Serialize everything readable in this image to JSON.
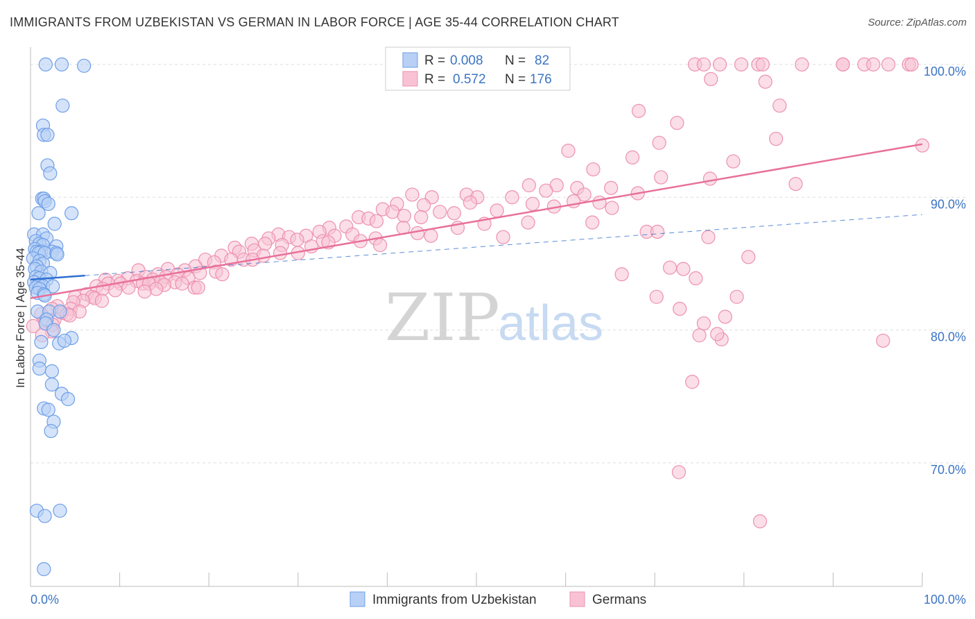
{
  "title": "IMMIGRANTS FROM UZBEKISTAN VS GERMAN IN LABOR FORCE | AGE 35-44 CORRELATION CHART",
  "source": "Source: ZipAtlas.com",
  "watermark": {
    "zip": "ZIP",
    "atlas": "atlas"
  },
  "colors": {
    "blue_fill": "#b8d0f5",
    "blue_stroke": "#6d9ee8",
    "blue_line": "#2f6fd0",
    "pink_fill": "#f8c2d4",
    "pink_stroke": "#ec90b0",
    "pink_line": "#e8709a",
    "grid": "#dddddd",
    "label": "#3b74c4"
  },
  "legend": {
    "rows": [
      {
        "r_label": "R =",
        "r_value": "0.008",
        "n_label": "N =",
        "n_value": "82"
      },
      {
        "r_label": "R =",
        "r_value": "0.572",
        "n_label": "N =",
        "n_value": "176"
      }
    ]
  },
  "chart_data": {
    "type": "scatter",
    "title": "IMMIGRANTS FROM UZBEKISTAN VS GERMAN IN LABOR FORCE | AGE 35-44 CORRELATION CHART",
    "xlabel": "",
    "ylabel": "In Labor Force | Age 35-44",
    "xlim": [
      0,
      100
    ],
    "ylim": [
      60.7,
      101.3
    ],
    "x_tick_labels": [
      "0.0%",
      "100.0%"
    ],
    "y_ticks": [
      70,
      80,
      90,
      100
    ],
    "y_tick_labels": [
      "70.0%",
      "80.0%",
      "90.0%",
      "100.0%"
    ],
    "grid": true,
    "legend_placement": "top-center",
    "series": [
      {
        "name": "Immigrants from Uzbekistan",
        "r": 0.008,
        "n": 82,
        "trend": {
          "x0": 0,
          "y0": 83.8,
          "x1": 6.1,
          "y1": 84.1,
          "dashed_to": 100,
          "dashed_y1": 88.7
        },
        "points": [
          [
            1.7,
            100.0
          ],
          [
            3.5,
            100.0
          ],
          [
            6.0,
            99.9
          ],
          [
            3.6,
            96.9
          ],
          [
            1.4,
            95.4
          ],
          [
            1.5,
            94.7
          ],
          [
            1.9,
            94.7
          ],
          [
            1.9,
            92.4
          ],
          [
            2.2,
            91.8
          ],
          [
            1.3,
            89.9
          ],
          [
            1.5,
            89.9
          ],
          [
            1.6,
            89.7
          ],
          [
            2.0,
            89.5
          ],
          [
            0.9,
            88.8
          ],
          [
            4.6,
            88.8
          ],
          [
            2.7,
            88.0
          ],
          [
            0.4,
            87.2
          ],
          [
            1.4,
            87.2
          ],
          [
            1.8,
            86.9
          ],
          [
            0.6,
            86.7
          ],
          [
            1.0,
            86.5
          ],
          [
            1.4,
            86.4
          ],
          [
            2.9,
            86.3
          ],
          [
            0.5,
            86.1
          ],
          [
            0.7,
            85.9
          ],
          [
            1.2,
            85.9
          ],
          [
            2.4,
            85.9
          ],
          [
            0.9,
            85.8
          ],
          [
            1.6,
            85.8
          ],
          [
            2.9,
            85.8
          ],
          [
            3.0,
            85.7
          ],
          [
            0.3,
            85.4
          ],
          [
            1.0,
            85.2
          ],
          [
            1.4,
            85.0
          ],
          [
            0.7,
            84.8
          ],
          [
            0.5,
            84.6
          ],
          [
            1.2,
            84.4
          ],
          [
            2.2,
            84.3
          ],
          [
            0.6,
            84.0
          ],
          [
            1.0,
            83.9
          ],
          [
            1.8,
            83.8
          ],
          [
            0.4,
            83.6
          ],
          [
            0.9,
            83.4
          ],
          [
            1.4,
            83.3
          ],
          [
            2.5,
            83.3
          ],
          [
            0.6,
            83.2
          ],
          [
            1.0,
            83.1
          ],
          [
            0.8,
            82.8
          ],
          [
            1.5,
            82.7
          ],
          [
            1.6,
            82.6
          ],
          [
            0.8,
            81.4
          ],
          [
            2.1,
            81.4
          ],
          [
            3.3,
            81.4
          ],
          [
            1.8,
            80.8
          ],
          [
            1.7,
            80.5
          ],
          [
            2.6,
            80.0
          ],
          [
            4.6,
            79.4
          ],
          [
            3.2,
            79.0
          ],
          [
            3.8,
            79.2
          ],
          [
            1.2,
            79.1
          ],
          [
            1.0,
            77.7
          ],
          [
            1.0,
            77.1
          ],
          [
            2.4,
            76.9
          ],
          [
            2.4,
            75.9
          ],
          [
            3.5,
            75.2
          ],
          [
            4.2,
            74.8
          ],
          [
            1.5,
            74.1
          ],
          [
            2.0,
            74.0
          ],
          [
            2.6,
            73.1
          ],
          [
            2.3,
            72.4
          ],
          [
            0.7,
            66.4
          ],
          [
            3.3,
            66.4
          ],
          [
            1.6,
            66.0
          ],
          [
            1.5,
            62.0
          ]
        ]
      },
      {
        "name": "Germans",
        "r": 0.572,
        "n": 176,
        "trend": {
          "x0": 0,
          "y0": 82.4,
          "x1": 100,
          "y1": 94.0
        },
        "points": [
          [
            74.5,
            100
          ],
          [
            75.5,
            100
          ],
          [
            77.3,
            100
          ],
          [
            79.7,
            100
          ],
          [
            81.6,
            100
          ],
          [
            82.1,
            100
          ],
          [
            86.5,
            100
          ],
          [
            91.1,
            100
          ],
          [
            91.1,
            100
          ],
          [
            93.5,
            100
          ],
          [
            94.5,
            100
          ],
          [
            96.2,
            100
          ],
          [
            98.5,
            100
          ],
          [
            98.8,
            100
          ],
          [
            76.3,
            98.9
          ],
          [
            82.4,
            98.7
          ],
          [
            84.0,
            96.9
          ],
          [
            68.2,
            96.5
          ],
          [
            72.5,
            95.6
          ],
          [
            70.5,
            94.1
          ],
          [
            83.6,
            94.4
          ],
          [
            100,
            93.9
          ],
          [
            60.3,
            93.5
          ],
          [
            67.5,
            93.0
          ],
          [
            78.8,
            92.7
          ],
          [
            63.1,
            92.1
          ],
          [
            76.2,
            91.4
          ],
          [
            70.7,
            91.5
          ],
          [
            85.8,
            91.0
          ],
          [
            59.0,
            90.9
          ],
          [
            61.3,
            90.7
          ],
          [
            55.9,
            90.9
          ],
          [
            65.1,
            90.7
          ],
          [
            57.8,
            90.5
          ],
          [
            68.1,
            90.3
          ],
          [
            42.8,
            90.2
          ],
          [
            48.9,
            90.2
          ],
          [
            50.1,
            90.0
          ],
          [
            62.1,
            90.2
          ],
          [
            54.0,
            90.0
          ],
          [
            45.0,
            90.0
          ],
          [
            60.9,
            89.7
          ],
          [
            56.3,
            89.5
          ],
          [
            49.3,
            89.6
          ],
          [
            63.8,
            89.6
          ],
          [
            41.1,
            89.5
          ],
          [
            44.1,
            89.4
          ],
          [
            58.7,
            89.3
          ],
          [
            65.2,
            89.2
          ],
          [
            39.5,
            89.1
          ],
          [
            52.3,
            89.0
          ],
          [
            45.9,
            88.9
          ],
          [
            40.6,
            88.9
          ],
          [
            47.5,
            88.8
          ],
          [
            41.9,
            88.6
          ],
          [
            36.8,
            88.5
          ],
          [
            43.8,
            88.5
          ],
          [
            37.9,
            88.4
          ],
          [
            38.8,
            88.2
          ],
          [
            55.8,
            88.1
          ],
          [
            50.9,
            88.0
          ],
          [
            63.0,
            88.1
          ],
          [
            35.4,
            87.8
          ],
          [
            41.8,
            87.7
          ],
          [
            47.9,
            87.7
          ],
          [
            33.5,
            87.7
          ],
          [
            69.1,
            87.4
          ],
          [
            70.3,
            87.4
          ],
          [
            32.4,
            87.4
          ],
          [
            43.4,
            87.3
          ],
          [
            36.1,
            87.2
          ],
          [
            34.1,
            87.1
          ],
          [
            44.9,
            87.1
          ],
          [
            30.9,
            87.1
          ],
          [
            27.8,
            87.2
          ],
          [
            29.0,
            87.0
          ],
          [
            53.0,
            87.0
          ],
          [
            76.0,
            87.0
          ],
          [
            26.7,
            86.9
          ],
          [
            38.7,
            86.9
          ],
          [
            29.9,
            86.8
          ],
          [
            32.8,
            86.7
          ],
          [
            37.0,
            86.7
          ],
          [
            33.4,
            86.6
          ],
          [
            26.3,
            86.5
          ],
          [
            24.8,
            86.5
          ],
          [
            28.2,
            86.4
          ],
          [
            39.2,
            86.4
          ],
          [
            31.5,
            86.3
          ],
          [
            22.9,
            86.2
          ],
          [
            25.1,
            86.0
          ],
          [
            23.4,
            85.9
          ],
          [
            28.0,
            85.8
          ],
          [
            30.0,
            85.8
          ],
          [
            26.1,
            85.6
          ],
          [
            21.4,
            85.6
          ],
          [
            80.5,
            85.5
          ],
          [
            23.9,
            85.3
          ],
          [
            19.6,
            85.3
          ],
          [
            22.5,
            85.3
          ],
          [
            24.9,
            85.3
          ],
          [
            20.6,
            85.1
          ],
          [
            18.5,
            84.8
          ],
          [
            15.4,
            84.6
          ],
          [
            71.7,
            84.7
          ],
          [
            73.2,
            84.6
          ],
          [
            12.1,
            84.5
          ],
          [
            17.3,
            84.5
          ],
          [
            20.8,
            84.4
          ],
          [
            19.0,
            84.3
          ],
          [
            14.3,
            84.2
          ],
          [
            16.5,
            84.2
          ],
          [
            21.5,
            84.2
          ],
          [
            66.3,
            84.2
          ],
          [
            12.9,
            84.0
          ],
          [
            15.2,
            84.0
          ],
          [
            17.7,
            83.9
          ],
          [
            10.9,
            83.9
          ],
          [
            13.7,
            83.8
          ],
          [
            74.6,
            83.9
          ],
          [
            8.4,
            83.8
          ],
          [
            9.8,
            83.7
          ],
          [
            11.9,
            83.7
          ],
          [
            14.6,
            83.6
          ],
          [
            16.2,
            83.6
          ],
          [
            8.7,
            83.5
          ],
          [
            10.1,
            83.5
          ],
          [
            12.6,
            83.5
          ],
          [
            13.3,
            83.5
          ],
          [
            15.0,
            83.4
          ],
          [
            17.0,
            83.5
          ],
          [
            7.4,
            83.3
          ],
          [
            11.0,
            83.2
          ],
          [
            18.4,
            83.2
          ],
          [
            18.8,
            83.2
          ],
          [
            14.1,
            83.1
          ],
          [
            8.1,
            83.1
          ],
          [
            9.5,
            83.0
          ],
          [
            12.8,
            82.9
          ],
          [
            6.3,
            82.7
          ],
          [
            5.0,
            82.5
          ],
          [
            6.9,
            82.5
          ],
          [
            7.2,
            82.4
          ],
          [
            5.9,
            82.2
          ],
          [
            8.0,
            82.2
          ],
          [
            4.8,
            82.1
          ],
          [
            3.0,
            81.8
          ],
          [
            2.4,
            81.6
          ],
          [
            4.5,
            81.6
          ],
          [
            5.5,
            81.4
          ],
          [
            3.5,
            81.3
          ],
          [
            4.1,
            81.2
          ],
          [
            1.2,
            81.2
          ],
          [
            4.4,
            81.1
          ],
          [
            2.7,
            80.8
          ],
          [
            1.6,
            80.7
          ],
          [
            2.5,
            80.4
          ],
          [
            0.3,
            80.3
          ],
          [
            2.4,
            79.9
          ],
          [
            1.3,
            79.6
          ],
          [
            75.5,
            80.5
          ],
          [
            77.9,
            81.0
          ],
          [
            79.2,
            82.5
          ],
          [
            95.6,
            79.2
          ],
          [
            70.2,
            82.5
          ],
          [
            75.0,
            79.6
          ],
          [
            77.5,
            79.3
          ],
          [
            72.8,
            81.6
          ],
          [
            77.0,
            79.7
          ],
          [
            74.2,
            76.1
          ],
          [
            72.7,
            69.3
          ],
          [
            81.8,
            65.6
          ]
        ]
      }
    ]
  },
  "bottom_legend": [
    {
      "label": "Immigrants from Uzbekistan"
    },
    {
      "label": "Germans"
    }
  ]
}
